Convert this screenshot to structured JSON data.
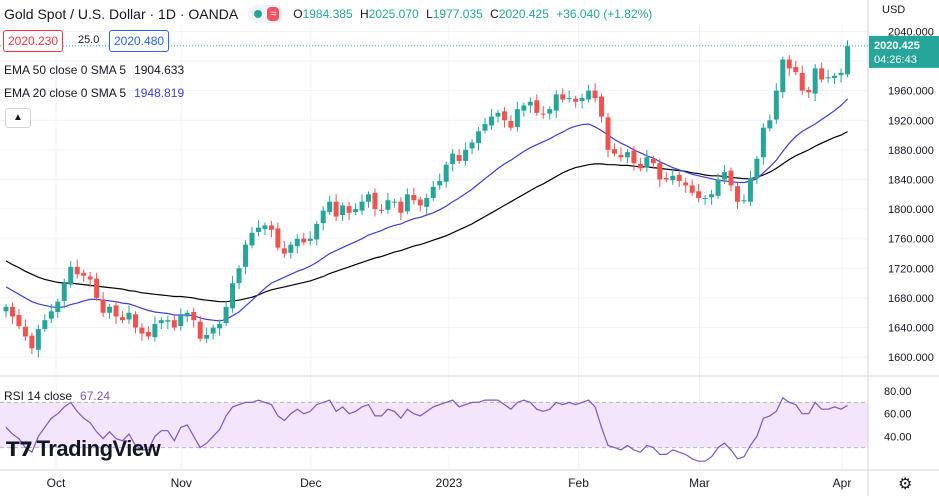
{
  "header": {
    "symbol": "Gold Spot / U.S. Dollar · 1D · OANDA",
    "badge": "≈",
    "o_label": "O",
    "o_value": "1984.385",
    "h_label": "H",
    "h_value": "2025.070",
    "l_label": "L",
    "l_value": "1977.035",
    "c_label": "C",
    "c_value": "2020.425",
    "change": "+36.040 (+1.82%)"
  },
  "order_panel": {
    "sell": "2020.230",
    "spread": "25.0",
    "buy": "2020.480"
  },
  "indicators": {
    "ema": {
      "label": "EMA 50 close 0 SMA 5",
      "value": "1904.633",
      "color": "#000000"
    },
    "sma": {
      "label": "EMA 20 close 0 SMA 5",
      "value": "1948.819",
      "color": "#3d3ddb"
    }
  },
  "collapse_icon": "chevron-up-icon",
  "currency": "USD",
  "price_label": {
    "price": "2020.425",
    "countdown": "04:26:43"
  },
  "rsi": {
    "label": "RSI 14 close",
    "value": "67.24",
    "color": "#7e57c2",
    "ticks": [
      "80.00",
      "60.00",
      "40.00"
    ]
  },
  "logo": "TradingView",
  "colors": {
    "up": "#26a69a",
    "down": "#ef5350",
    "price_line": "#26a69a",
    "rsi_band": "#f3e5fb"
  },
  "chart_data": {
    "type": "candlestick",
    "y_ticks": [
      "2040.000",
      "2000.000",
      "1960.000",
      "1920.000",
      "1880.000",
      "1840.000",
      "1800.000",
      "1760.000",
      "1720.000",
      "1680.000",
      "1640.000",
      "1600.000"
    ],
    "ylim": [
      1580,
      2050
    ],
    "x_labels": [
      {
        "label": "Oct",
        "date": "2022-10-03"
      },
      {
        "label": "Nov",
        "date": "2022-11-01"
      },
      {
        "label": "Dec",
        "date": "2022-12-01"
      },
      {
        "label": "2023",
        "date": "2023-01-02"
      },
      {
        "label": "Feb",
        "date": "2023-02-01"
      },
      {
        "label": "Mar",
        "date": "2023-03-01"
      },
      {
        "label": "Apr",
        "date": "2023-04-03"
      }
    ],
    "closes": [
      1668,
      1655,
      1642,
      1628,
      1612,
      1638,
      1650,
      1662,
      1675,
      1700,
      1722,
      1712,
      1710,
      1705,
      1680,
      1660,
      1668,
      1655,
      1650,
      1660,
      1640,
      1632,
      1628,
      1645,
      1650,
      1650,
      1640,
      1656,
      1660,
      1650,
      1625,
      1630,
      1640,
      1645,
      1668,
      1700,
      1720,
      1752,
      1768,
      1775,
      1778,
      1772,
      1748,
      1740,
      1752,
      1760,
      1755,
      1760,
      1780,
      1798,
      1810,
      1790,
      1805,
      1795,
      1800,
      1810,
      1820,
      1800,
      1798,
      1812,
      1810,
      1795,
      1820,
      1812,
      1805,
      1815,
      1830,
      1838,
      1860,
      1875,
      1865,
      1880,
      1890,
      1905,
      1915,
      1925,
      1930,
      1920,
      1910,
      1935,
      1940,
      1945,
      1930,
      1928,
      1935,
      1955,
      1948,
      1950,
      1945,
      1950,
      1960,
      1950,
      1925,
      1880,
      1875,
      1870,
      1877,
      1862,
      1855,
      1870,
      1862,
      1840,
      1840,
      1845,
      1838,
      1832,
      1822,
      1815,
      1815,
      1820,
      1840,
      1850,
      1832,
      1810,
      1812,
      1842,
      1868,
      1910,
      1920,
      1960,
      2002,
      1990,
      1985,
      1960,
      1958,
      1990,
      1975,
      1978,
      1980,
      1984,
      2020
    ],
    "ema50": [
      1730,
      1725,
      1721,
      1716,
      1712,
      1708,
      1705,
      1703,
      1701,
      1700,
      1700,
      1699,
      1698,
      1697,
      1696,
      1695,
      1694,
      1693,
      1692,
      1690,
      1689,
      1687,
      1686,
      1685,
      1684,
      1683,
      1682,
      1682,
      1681,
      1680,
      1678,
      1677,
      1676,
      1675,
      1675,
      1676,
      1677,
      1679,
      1681,
      1684,
      1688,
      1691,
      1693,
      1695,
      1697,
      1699,
      1701,
      1703,
      1706,
      1709,
      1713,
      1716,
      1719,
      1722,
      1725,
      1728,
      1731,
      1734,
      1736,
      1739,
      1742,
      1744,
      1747,
      1750,
      1752,
      1755,
      1758,
      1761,
      1764,
      1768,
      1772,
      1776,
      1780,
      1785,
      1790,
      1795,
      1800,
      1805,
      1810,
      1815,
      1820,
      1825,
      1830,
      1834,
      1839,
      1844,
      1849,
      1853,
      1856,
      1858,
      1860,
      1861,
      1861,
      1860,
      1860,
      1859,
      1859,
      1858,
      1857,
      1857,
      1856,
      1855,
      1854,
      1853,
      1852,
      1851,
      1849,
      1848,
      1846,
      1845,
      1845,
      1844,
      1843,
      1842,
      1841,
      1841,
      1843,
      1846,
      1850,
      1855,
      1861,
      1867,
      1872,
      1876,
      1880,
      1885,
      1889,
      1893,
      1897,
      1900,
      1904.633
    ],
    "ema20": [
      1695,
      1690,
      1685,
      1680,
      1675,
      1672,
      1670,
      1668,
      1667,
      1668,
      1671,
      1673,
      1676,
      1678,
      1678,
      1677,
      1676,
      1675,
      1673,
      1672,
      1669,
      1666,
      1663,
      1661,
      1660,
      1659,
      1657,
      1657,
      1657,
      1656,
      1653,
      1651,
      1650,
      1649,
      1651,
      1656,
      1661,
      1669,
      1677,
      1685,
      1693,
      1700,
      1704,
      1708,
      1712,
      1716,
      1719,
      1723,
      1728,
      1734,
      1740,
      1744,
      1748,
      1752,
      1756,
      1760,
      1765,
      1768,
      1771,
      1775,
      1778,
      1780,
      1784,
      1787,
      1789,
      1792,
      1795,
      1799,
      1804,
      1810,
      1815,
      1821,
      1827,
      1834,
      1841,
      1848,
      1855,
      1861,
      1866,
      1872,
      1878,
      1883,
      1887,
      1891,
      1895,
      1900,
      1904,
      1909,
      1912,
      1914,
      1915,
      1911,
      1906,
      1900,
      1894,
      1889,
      1885,
      1880,
      1876,
      1872,
      1869,
      1864,
      1860,
      1856,
      1853,
      1850,
      1847,
      1845,
      1843,
      1841,
      1839,
      1838,
      1837,
      1836,
      1836,
      1838,
      1841,
      1849,
      1857,
      1866,
      1878,
      1889,
      1898,
      1905,
      1910,
      1915,
      1921,
      1927,
      1933,
      1940,
      1948.819
    ],
    "rsi": [
      48,
      42,
      38,
      30,
      26,
      40,
      48,
      56,
      60,
      66,
      70,
      62,
      56,
      52,
      44,
      38,
      44,
      38,
      36,
      42,
      32,
      28,
      28,
      40,
      45,
      45,
      36,
      48,
      50,
      40,
      30,
      34,
      40,
      46,
      58,
      66,
      68,
      70,
      70,
      72,
      70,
      68,
      58,
      54,
      60,
      64,
      60,
      62,
      68,
      70,
      72,
      62,
      66,
      60,
      62,
      66,
      68,
      58,
      58,
      64,
      62,
      56,
      64,
      60,
      58,
      62,
      66,
      68,
      70,
      72,
      66,
      68,
      70,
      70,
      72,
      72,
      72,
      68,
      64,
      70,
      72,
      70,
      64,
      62,
      64,
      70,
      68,
      70,
      68,
      70,
      72,
      66,
      48,
      32,
      30,
      28,
      32,
      28,
      26,
      32,
      30,
      24,
      24,
      28,
      26,
      24,
      20,
      18,
      18,
      22,
      30,
      34,
      28,
      20,
      22,
      32,
      40,
      56,
      58,
      62,
      74,
      70,
      68,
      60,
      60,
      70,
      64,
      64,
      66,
      64,
      67.24
    ]
  }
}
